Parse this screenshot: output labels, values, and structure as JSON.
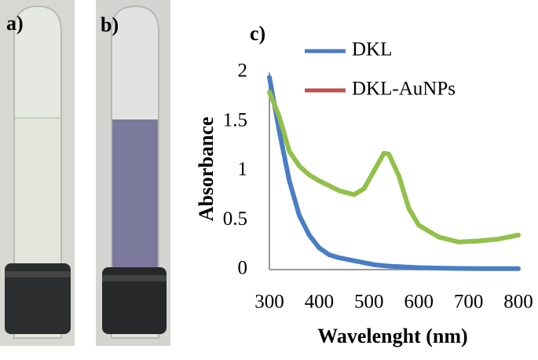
{
  "panel_labels": [
    "a)",
    "b)"
  ],
  "chart_data": {
    "type": "line",
    "panel_label": "c)",
    "x_label": "Wavelenght (nm)",
    "y_label": "Absorbance",
    "x": [
      300,
      320,
      340,
      360,
      380,
      400,
      420,
      440,
      470,
      490,
      510,
      530,
      540,
      560,
      580,
      600,
      640,
      680,
      720,
      760,
      800
    ],
    "series": [
      {
        "name": "DKL",
        "color": "#4a7ec4",
        "legend_color": "#4a7ec4",
        "values": [
          1.95,
          1.4,
          0.9,
          0.55,
          0.35,
          0.22,
          0.15,
          0.12,
          0.09,
          0.07,
          0.05,
          0.04,
          0.035,
          0.03,
          0.025,
          0.02,
          0.015,
          0.012,
          0.01,
          0.01,
          0.01
        ]
      },
      {
        "name": "DKL-AuNPs",
        "color": "#92c04a",
        "legend_color": "#c0504d",
        "values": [
          1.8,
          1.55,
          1.2,
          1.05,
          0.96,
          0.9,
          0.85,
          0.8,
          0.76,
          0.82,
          1.0,
          1.18,
          1.17,
          0.95,
          0.62,
          0.45,
          0.33,
          0.28,
          0.29,
          0.31,
          0.35
        ]
      }
    ],
    "xlim": [
      300,
      800
    ],
    "xticks": [
      300,
      400,
      500,
      600,
      700,
      800
    ],
    "ylim": [
      0,
      2
    ],
    "yticks": [
      0,
      0.5,
      1,
      1.5,
      2
    ],
    "grid": false,
    "legend": "top-right"
  }
}
